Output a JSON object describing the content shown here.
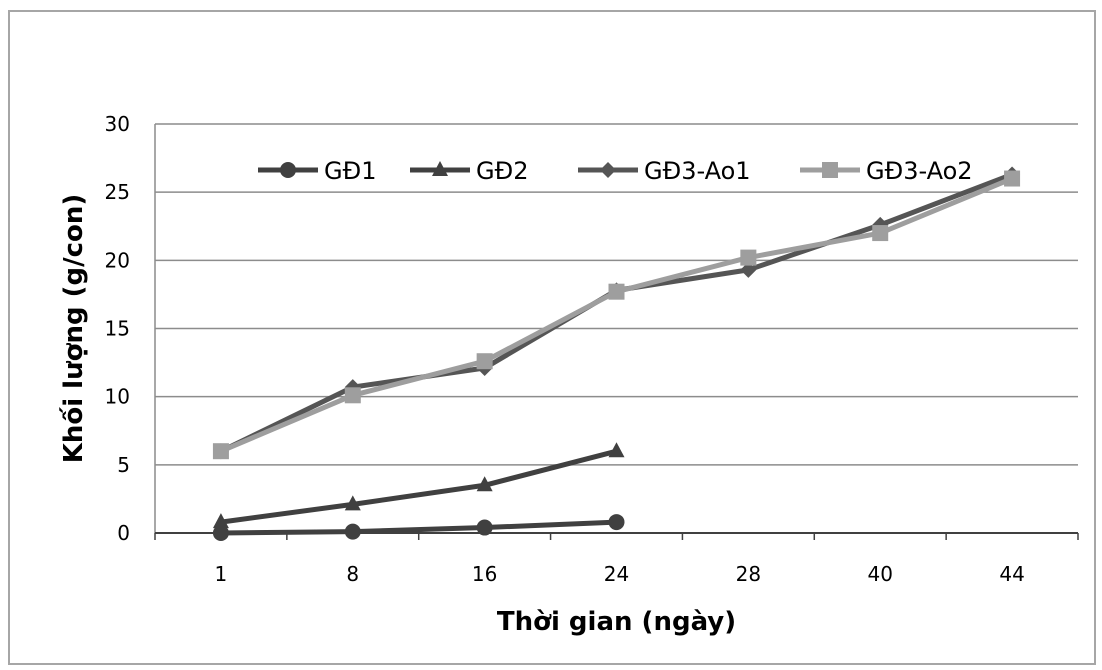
{
  "chart_data": {
    "type": "line",
    "title": "",
    "xlabel": "Thời gian (ngày)",
    "ylabel": "Khối lượng (g/con)",
    "categories": [
      "1",
      "8",
      "16",
      "24",
      "28",
      "40",
      "44"
    ],
    "ylim": [
      0,
      30
    ],
    "yticks": [
      0,
      5,
      10,
      15,
      20,
      25,
      30
    ],
    "grid": true,
    "legend_position": "top",
    "series": [
      {
        "name": "GĐ1",
        "values": [
          0.0,
          0.1,
          0.4,
          0.8,
          null,
          null,
          null
        ],
        "color": "#404040",
        "marker": "circle"
      },
      {
        "name": "GĐ2",
        "values": [
          0.8,
          2.1,
          3.5,
          6.0,
          null,
          null,
          null
        ],
        "color": "#404040",
        "marker": "triangle"
      },
      {
        "name": "GĐ3-Ao1",
        "values": [
          6.0,
          10.7,
          12.1,
          17.8,
          19.3,
          22.6,
          26.3
        ],
        "color": "#555555",
        "marker": "diamond"
      },
      {
        "name": "GĐ3-Ao2",
        "values": [
          6.0,
          10.1,
          12.6,
          17.7,
          20.2,
          22.0,
          26.0
        ],
        "color": "#9e9e9e",
        "marker": "square"
      }
    ]
  }
}
